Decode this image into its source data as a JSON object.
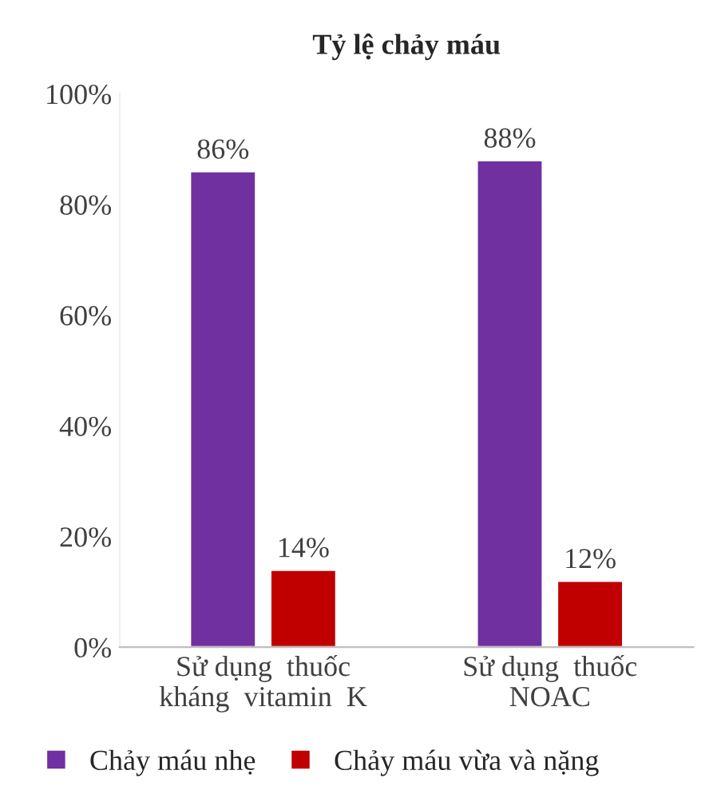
{
  "chart_data": {
    "type": "bar",
    "title": "Tỷ lệ chảy máu",
    "categories": [
      "Sử dụng  thuốc\nkháng  vitamin  K",
      "Sử dụng  thuốc\nNOAC"
    ],
    "series": [
      {
        "name": "Chảy máu nhẹ",
        "color": "#7030a0",
        "values": [
          86,
          88
        ],
        "value_labels": [
          "86%",
          "88%"
        ]
      },
      {
        "name": "Chảy máu vừa và nặng",
        "color": "#c00000",
        "values": [
          14,
          12
        ],
        "value_labels": [
          "14%",
          "12%"
        ]
      }
    ],
    "ylim": [
      0,
      100
    ],
    "yticks": [
      {
        "value": 0,
        "label": "0%"
      },
      {
        "value": 20,
        "label": "20%"
      },
      {
        "value": 40,
        "label": "40%"
      },
      {
        "value": 60,
        "label": "60%"
      },
      {
        "value": 80,
        "label": "80%"
      },
      {
        "value": 100,
        "label": "100%"
      }
    ],
    "grid": false,
    "legend": "bottom"
  }
}
